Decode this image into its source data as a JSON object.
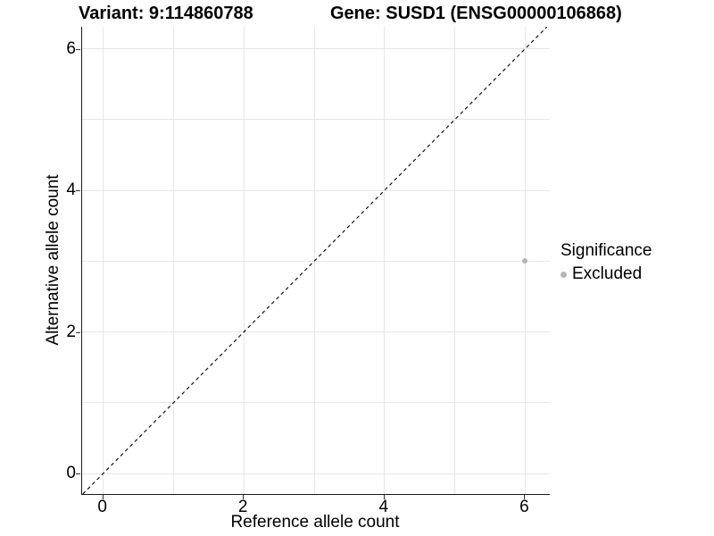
{
  "chart_data": {
    "type": "scatter",
    "title_left": "Variant: 9:114860788",
    "title_right": "Gene: SUSD1 (ENSG00000106868)",
    "xlabel": "Reference allele count",
    "ylabel": "Alternative allele count",
    "xlim": [
      -0.3,
      6.35
    ],
    "ylim": [
      -0.29,
      6.31
    ],
    "x_ticks": [
      0,
      2,
      4,
      6
    ],
    "y_ticks": [
      0,
      2,
      4,
      6
    ],
    "grid_positions": [
      0,
      1,
      2,
      3,
      4,
      5,
      6
    ],
    "grid": true,
    "series": [
      {
        "name": "Excluded",
        "color": "#b5b5b5",
        "points": [
          {
            "x": 6,
            "y": 3
          }
        ]
      }
    ],
    "reference_line": {
      "kind": "identity y=x",
      "style": "dashed",
      "color": "#000000"
    },
    "legend": {
      "title": "Significance",
      "position": "right",
      "entries": [
        {
          "label": "Excluded",
          "color": "#b5b5b5"
        }
      ]
    }
  },
  "colors": {
    "background": "#ffffff",
    "grid": "#e6e6e6",
    "axis_line": "#1a1a1a",
    "tick": "#333333",
    "text": "#000000",
    "point": "#b5b5b5"
  }
}
